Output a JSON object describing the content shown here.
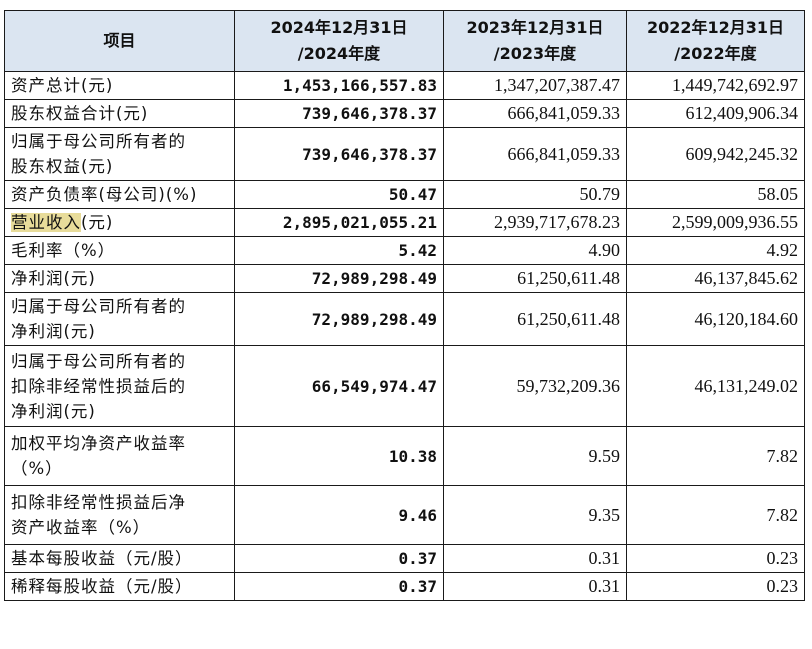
{
  "table": {
    "headers": {
      "item": "项目",
      "y2024": [
        "2024年12月31日",
        "/2024年度"
      ],
      "y2023": [
        "2023年12月31日",
        "/2023年度"
      ],
      "y2022": [
        "2022年12月31日",
        "/2022年度"
      ]
    },
    "rows": [
      {
        "label": [
          "资产总计(元)"
        ],
        "v2024": "1,453,166,557.83",
        "v2023": "1,347,207,387.47",
        "v2022": "1,449,742,692.97"
      },
      {
        "label": [
          "股东权益合计(元)"
        ],
        "v2024": "739,646,378.37",
        "v2023": "666,841,059.33",
        "v2022": "612,409,906.34"
      },
      {
        "label": [
          "归属于母公司所有者的",
          "股东权益(元)"
        ],
        "v2024": "739,646,378.37",
        "v2023": "666,841,059.33",
        "v2022": "609,942,245.32"
      },
      {
        "label": [
          "资产负债率(母公司)(%)"
        ],
        "v2024": "50.47",
        "v2023": "50.79",
        "v2022": "58.05"
      },
      {
        "label_highlight": "营业收入",
        "label_rest": "(元)",
        "v2024": "2,895,021,055.21",
        "v2023": "2,939,717,678.23",
        "v2022": "2,599,009,936.55"
      },
      {
        "label": [
          "毛利率（%）"
        ],
        "v2024": "5.42",
        "v2023": "4.90",
        "v2022": "4.92"
      },
      {
        "label": [
          "净利润(元)"
        ],
        "v2024": "72,989,298.49",
        "v2023": "61,250,611.48",
        "v2022": "46,137,845.62"
      },
      {
        "label": [
          "归属于母公司所有者的",
          "净利润(元)"
        ],
        "v2024": "72,989,298.49",
        "v2023": "61,250,611.48",
        "v2022": "46,120,184.60"
      },
      {
        "label": [
          "归属于母公司所有者的",
          "扣除非经常性损益后的",
          "净利润(元)"
        ],
        "v2024": "66,549,974.47",
        "v2023": "59,732,209.36",
        "v2022": "46,131,249.02"
      },
      {
        "label": [
          "加权平均净资产收益率",
          "（%）"
        ],
        "v2024": "10.38",
        "v2023": "9.59",
        "v2022": "7.82"
      },
      {
        "label": [
          "扣除非经常性损益后净",
          "资产收益率（%）"
        ],
        "v2024": "9.46",
        "v2023": "9.35",
        "v2022": "7.82"
      },
      {
        "label": [
          "基本每股收益（元/股）"
        ],
        "v2024": "0.37",
        "v2023": "0.31",
        "v2022": "0.23"
      },
      {
        "label": [
          "稀释每股收益（元/股）"
        ],
        "v2024": "0.37",
        "v2023": "0.31",
        "v2022": "0.23"
      }
    ]
  },
  "colors": {
    "header_bg": "#dbe5f1",
    "highlight": "#e8dc9a",
    "border": "#1a1a1a"
  }
}
